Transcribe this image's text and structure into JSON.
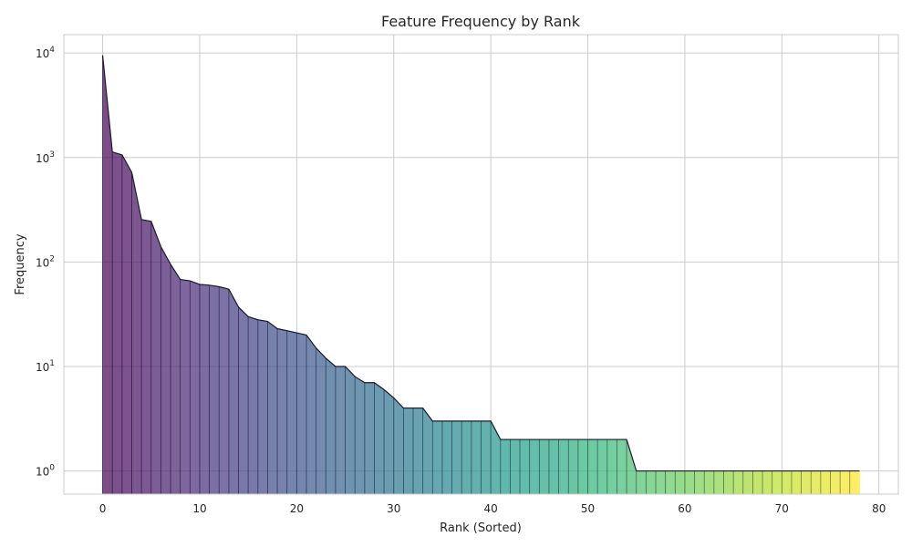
{
  "chart_data": {
    "type": "area",
    "title": "Feature Frequency by Rank",
    "xlabel": "Rank (Sorted)",
    "ylabel": "Frequency",
    "y_scale": "log",
    "xlim": [
      -4,
      82
    ],
    "ylim": [
      0.6,
      15000
    ],
    "x_ticks": [
      0,
      10,
      20,
      30,
      40,
      50,
      60,
      70,
      80
    ],
    "x_tick_labels": [
      "0",
      "10",
      "20",
      "30",
      "40",
      "50",
      "60",
      "70",
      "80"
    ],
    "y_ticks": [
      1,
      10,
      100,
      1000,
      10000
    ],
    "y_tick_labels": [
      {
        "base": "10",
        "exp": "0"
      },
      {
        "base": "10",
        "exp": "1"
      },
      {
        "base": "10",
        "exp": "2"
      },
      {
        "base": "10",
        "exp": "3"
      },
      {
        "base": "10",
        "exp": "4"
      }
    ],
    "grid": true,
    "colormap": "viridis",
    "fill_alpha": 0.7,
    "outline_color": "#1a1a2e",
    "x": [
      0,
      1,
      2,
      3,
      4,
      5,
      6,
      7,
      8,
      9,
      10,
      11,
      12,
      13,
      14,
      15,
      16,
      17,
      18,
      19,
      20,
      21,
      22,
      23,
      24,
      25,
      26,
      27,
      28,
      29,
      30,
      31,
      32,
      33,
      34,
      35,
      36,
      37,
      38,
      39,
      40,
      41,
      42,
      43,
      44,
      45,
      46,
      47,
      48,
      49,
      50,
      51,
      52,
      53,
      54,
      55,
      56,
      57,
      58,
      59,
      60,
      61,
      62,
      63,
      64,
      65,
      66,
      67,
      68,
      69,
      70,
      71,
      72,
      73,
      74,
      75,
      76,
      77,
      78
    ],
    "values": [
      9500,
      1130,
      1060,
      720,
      255,
      245,
      140,
      95,
      68,
      66,
      61,
      60,
      58,
      55,
      37,
      30,
      28,
      27,
      23,
      22,
      21,
      20,
      15,
      12,
      10,
      10,
      8,
      7,
      7,
      6,
      5,
      4,
      4,
      4,
      3,
      3,
      3,
      3,
      3,
      3,
      3,
      2,
      2,
      2,
      2,
      2,
      2,
      2,
      2,
      2,
      2,
      2,
      2,
      2,
      2,
      1,
      1,
      1,
      1,
      1,
      1,
      1,
      1,
      1,
      1,
      1,
      1,
      1,
      1,
      1,
      1,
      1,
      1,
      1,
      1,
      1,
      1,
      1,
      1
    ]
  }
}
